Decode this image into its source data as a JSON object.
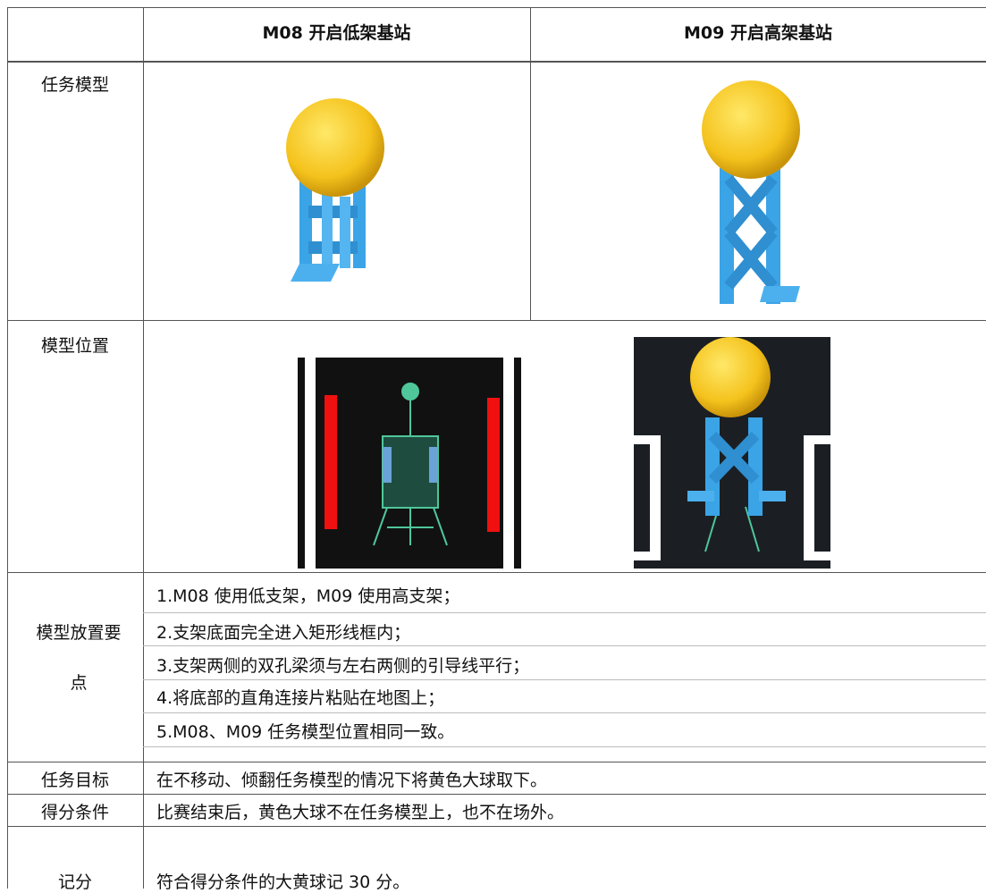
{
  "header": {
    "columns": [
      "M08 开启低架基站",
      "M09 开启高架基站"
    ]
  },
  "rows": {
    "model": {
      "label": "任务模型"
    },
    "position": {
      "label": "模型位置"
    },
    "placement": {
      "label": "模型放置要点",
      "points": [
        "1.M08 使用低支架，M09 使用高支架；",
        "2.支架底面完全进入矩形线框内；",
        "3.支架两侧的双孔梁须与左右两侧的引导线平行；",
        "4.将底部的直角连接片粘贴在地图上；",
        "5.M08、M09 任务模型位置相同一致。"
      ]
    },
    "goal": {
      "label": "任务目标",
      "text": "在不移动、倾翻任务模型的情况下将黄色大球取下。"
    },
    "score_condition": {
      "label": "得分条件",
      "text": "比赛结束后，黄色大球不在任务模型上，也不在场外。"
    },
    "scoring": {
      "label": "记分",
      "text": "符合得分条件的大黄球记 30 分。"
    }
  }
}
